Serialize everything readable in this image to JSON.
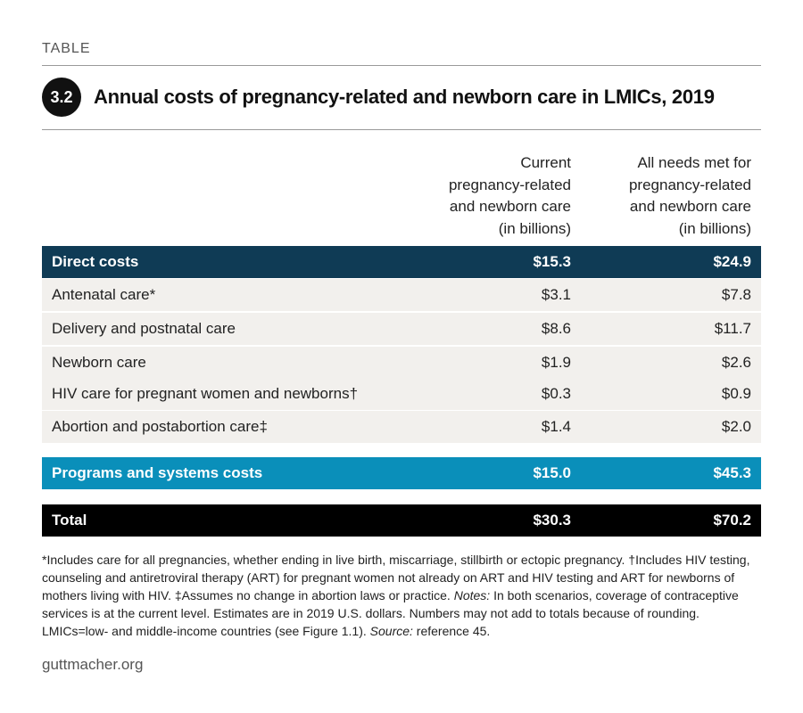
{
  "header": {
    "label": "TABLE",
    "number": "3.2",
    "title": "Annual costs of pregnancy-related and newborn care in LMICs, 2019"
  },
  "columns": {
    "col1": [
      "Current",
      "pregnancy-related",
      "and newborn care",
      "(in billions)"
    ],
    "col2": [
      "All needs met for",
      "pregnancy-related",
      "and newborn care",
      "(in billions)"
    ]
  },
  "colors": {
    "direct_header": "#0f3b55",
    "programs_header": "#0a8fba",
    "total_header": "#000000",
    "band": "#f2f0ed"
  },
  "rows": {
    "direct": {
      "label": "Direct costs",
      "current": "$15.3",
      "needs_met": "$24.9"
    },
    "items": [
      {
        "label": "Antenatal care*",
        "current": "$3.1",
        "needs_met": "$7.8"
      },
      {
        "label": "Delivery and postnatal care",
        "current": "$8.6",
        "needs_met": "$11.7"
      },
      {
        "label": "Newborn care",
        "current": "$1.9",
        "needs_met": "$2.6"
      },
      {
        "label": "HIV care for pregnant women and newborns†",
        "current": "$0.3",
        "needs_met": "$0.9"
      },
      {
        "label": "Abortion and postabortion care‡",
        "current": "$1.4",
        "needs_met": "$2.0"
      }
    ],
    "programs": {
      "label": "Programs and systems costs",
      "current": "$15.0",
      "needs_met": "$45.3"
    },
    "total": {
      "label": "Total",
      "current": "$30.3",
      "needs_met": "$70.2"
    }
  },
  "footnote": {
    "part1": "*Includes care for all pregnancies, whether ending in live birth, miscarriage, stillbirth or ectopic pregnancy. †Includes HIV testing, counseling and antiretroviral therapy (ART) for pregnant women not already on ART and HIV testing and ART for newborns of mothers living with HIV. ‡Assumes no change in abortion laws or practice.",
    "notes_label": "Notes:",
    "part2": "In both scenarios, coverage of contraceptive services is at the current level. Estimates are in 2019 U.S. dollars. Numbers may not add to totals because of rounding. LMICs=low- and middle-income countries (see Figure 1.1).",
    "source_label": "Source:",
    "part3": "reference 45."
  },
  "site": "guttmacher.org"
}
